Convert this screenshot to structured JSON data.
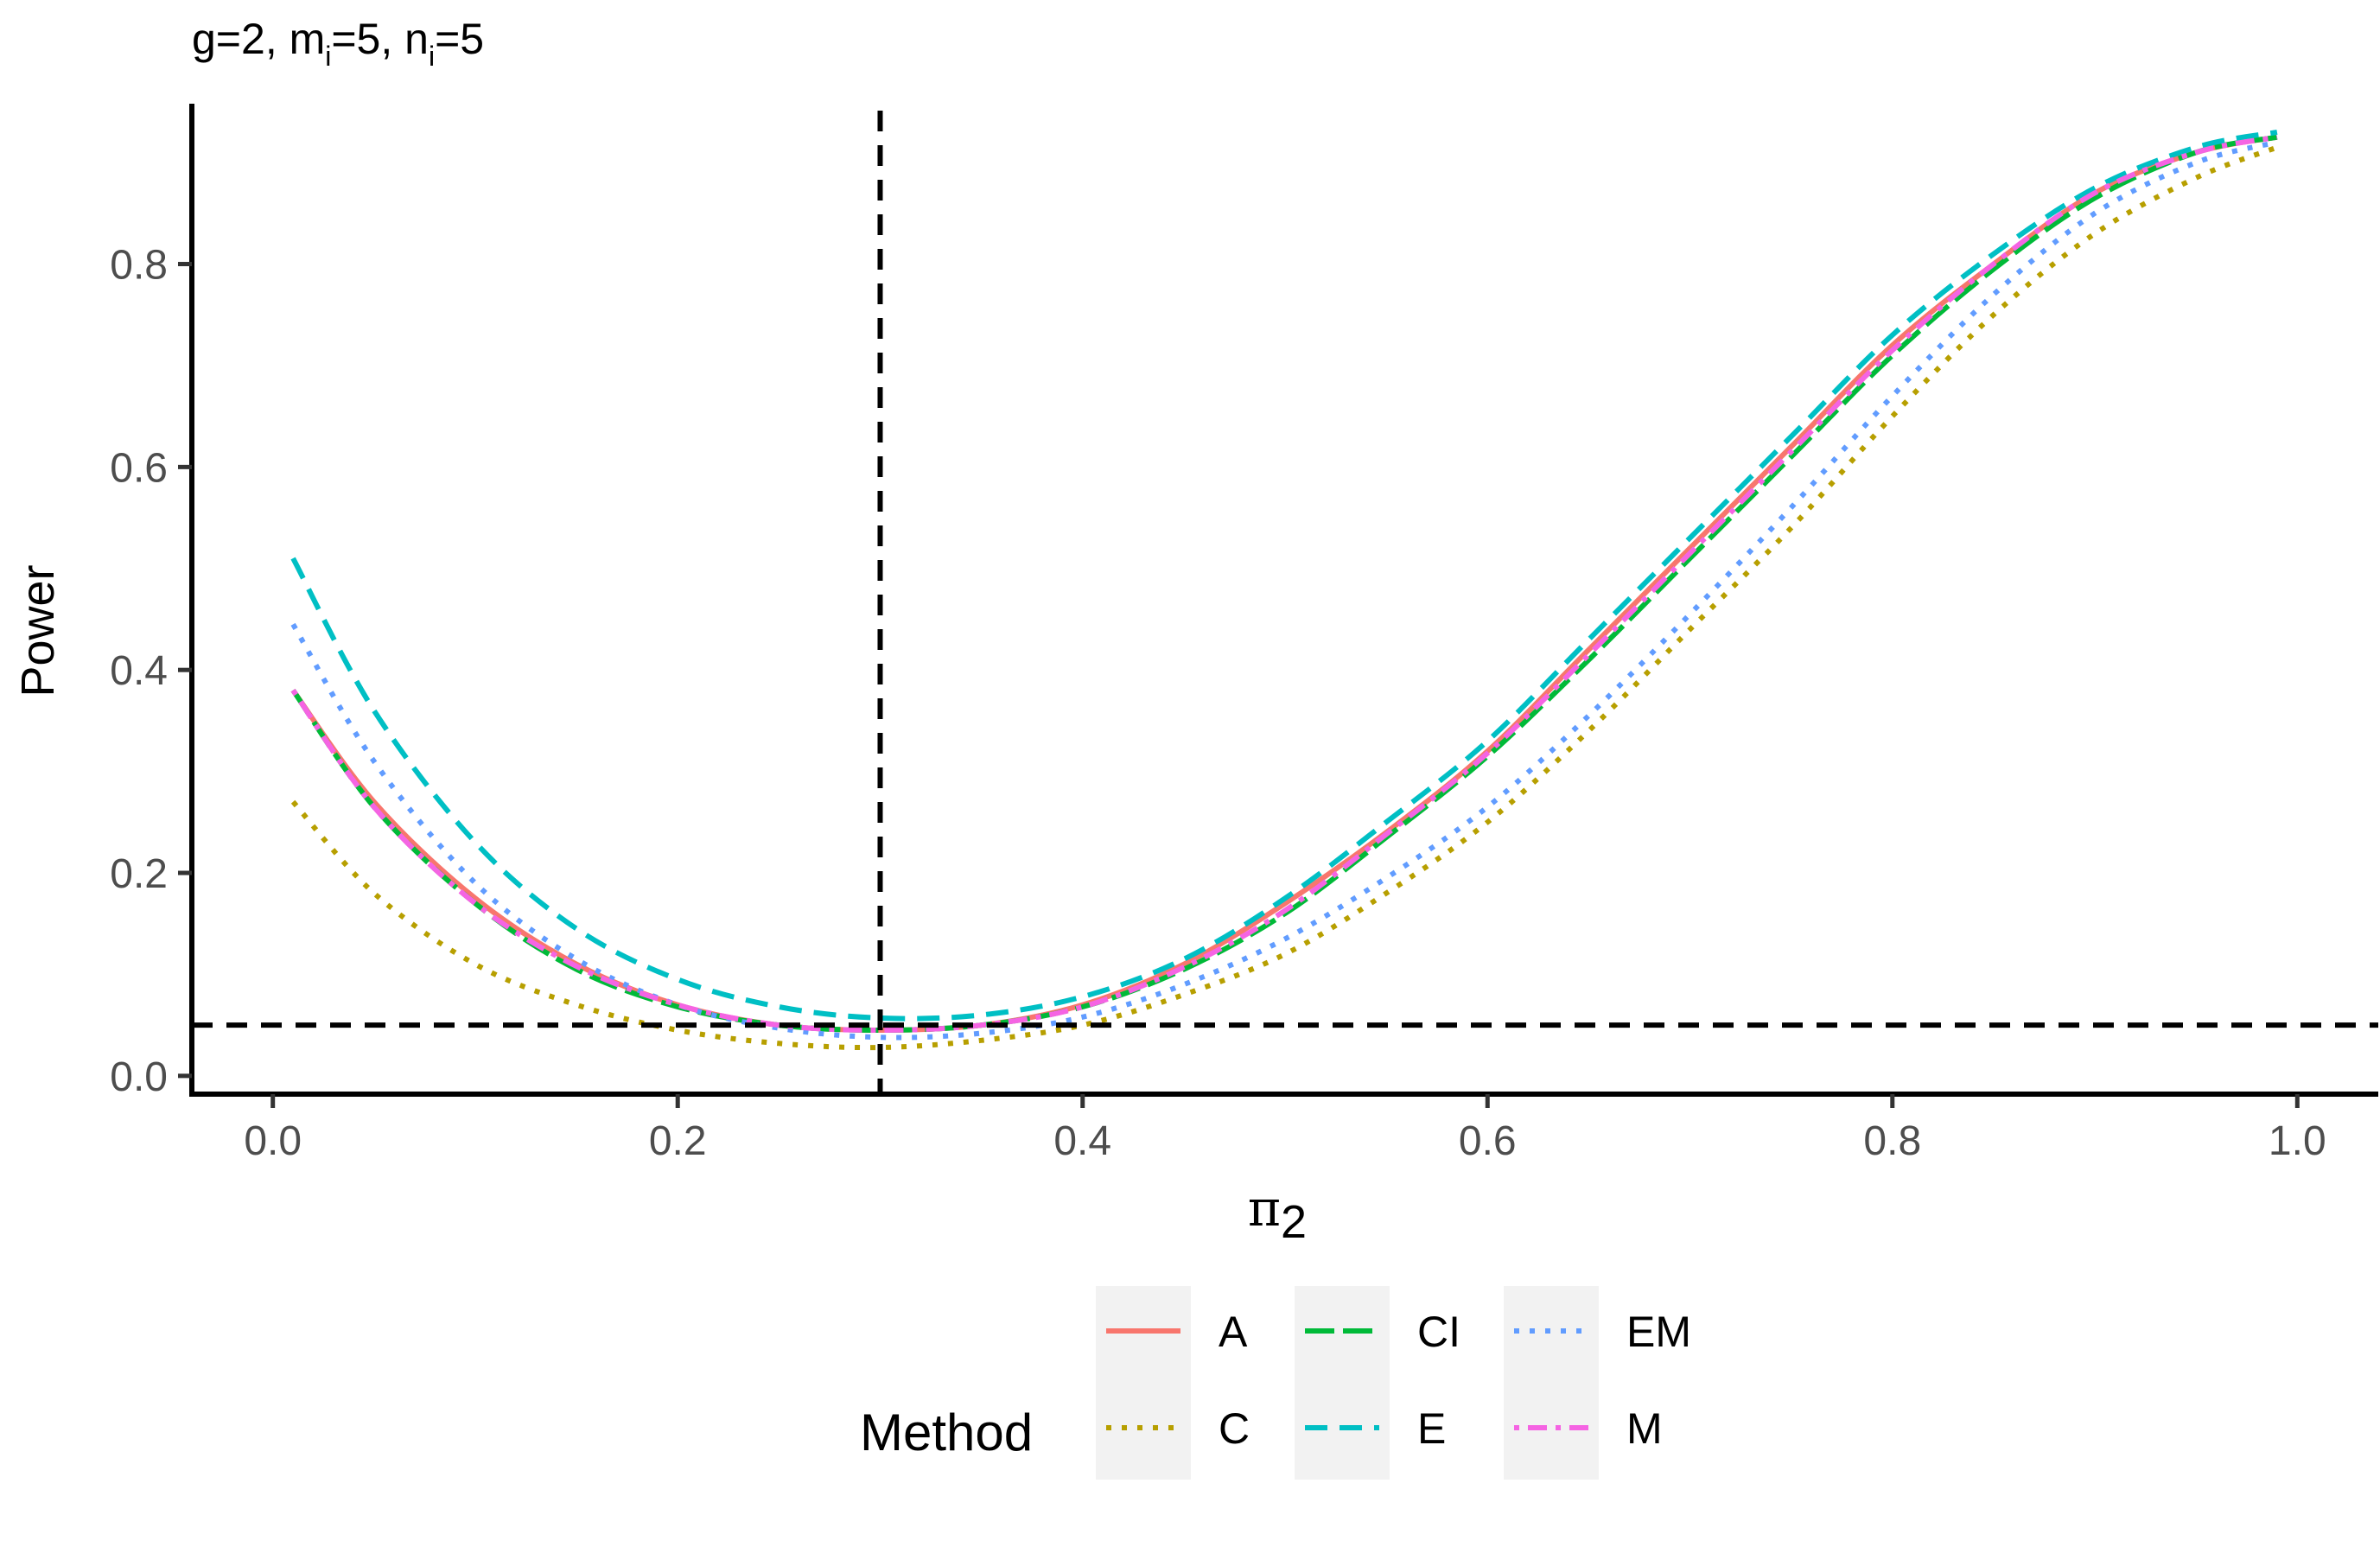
{
  "chart_data": {
    "type": "line",
    "title": {
      "prefix": "g=2, m",
      "sub1": "i",
      "mid": "=5, n",
      "sub2": "i",
      "suffix": "=5"
    },
    "xlabel": {
      "symbol": "π",
      "subscript": "2"
    },
    "ylabel": "Power",
    "xlim": [
      -0.04,
      1.04
    ],
    "ylim": [
      -0.018,
      0.958
    ],
    "x_ticks": [
      0.0,
      0.2,
      0.4,
      0.6,
      0.8,
      1.0
    ],
    "x_tick_labels": [
      "0.0",
      "0.2",
      "0.4",
      "0.6",
      "0.8",
      "1.0"
    ],
    "y_ticks": [
      0.0,
      0.2,
      0.4,
      0.6,
      0.8
    ],
    "y_tick_labels": [
      "0.0",
      "0.2",
      "0.4",
      "0.6",
      "0.8"
    ],
    "grid": false,
    "reference_lines": [
      {
        "orientation": "vertical",
        "value": 0.3,
        "style": "dashed"
      },
      {
        "orientation": "horizontal",
        "value": 0.05,
        "style": "dashed"
      }
    ],
    "x": [
      0.01,
      0.05,
      0.1,
      0.15,
      0.2,
      0.25,
      0.3,
      0.35,
      0.4,
      0.45,
      0.5,
      0.55,
      0.6,
      0.65,
      0.7,
      0.75,
      0.8,
      0.85,
      0.9,
      0.95,
      0.99
    ],
    "series": [
      {
        "name": "A",
        "color": "#F8766D",
        "dash": "solid",
        "values": [
          0.38,
          0.27,
          0.175,
          0.11,
          0.07,
          0.05,
          0.045,
          0.05,
          0.07,
          0.11,
          0.17,
          0.24,
          0.32,
          0.42,
          0.52,
          0.62,
          0.72,
          0.8,
          0.87,
          0.91,
          0.925
        ]
      },
      {
        "name": "C",
        "color": "#B79F00",
        "dash": "dotted",
        "values": [
          0.27,
          0.18,
          0.11,
          0.07,
          0.045,
          0.032,
          0.028,
          0.035,
          0.05,
          0.08,
          0.12,
          0.18,
          0.25,
          0.34,
          0.44,
          0.54,
          0.65,
          0.75,
          0.83,
          0.885,
          0.915
        ]
      },
      {
        "name": "CI",
        "color": "#00BA38",
        "dash": "longdash",
        "values": [
          0.38,
          0.265,
          0.17,
          0.105,
          0.068,
          0.05,
          0.045,
          0.05,
          0.068,
          0.105,
          0.16,
          0.235,
          0.315,
          0.41,
          0.51,
          0.61,
          0.71,
          0.795,
          0.865,
          0.91,
          0.925
        ]
      },
      {
        "name": "E",
        "color": "#00BFC4",
        "dash": "dashed",
        "values": [
          0.51,
          0.36,
          0.23,
          0.145,
          0.095,
          0.068,
          0.057,
          0.06,
          0.078,
          0.115,
          0.175,
          0.25,
          0.33,
          0.43,
          0.53,
          0.63,
          0.73,
          0.81,
          0.875,
          0.915,
          0.93
        ]
      },
      {
        "name": "EM",
        "color": "#619CFF",
        "dash": "dotted",
        "values": [
          0.445,
          0.31,
          0.19,
          0.115,
          0.07,
          0.047,
          0.038,
          0.042,
          0.058,
          0.09,
          0.135,
          0.195,
          0.265,
          0.355,
          0.455,
          0.56,
          0.67,
          0.77,
          0.85,
          0.9,
          0.92
        ]
      },
      {
        "name": "M",
        "color": "#F564E3",
        "dash": "dotdash",
        "values": [
          0.38,
          0.265,
          0.17,
          0.108,
          0.07,
          0.05,
          0.045,
          0.05,
          0.068,
          0.107,
          0.163,
          0.238,
          0.318,
          0.415,
          0.515,
          0.615,
          0.715,
          0.8,
          0.87,
          0.91,
          0.925
        ]
      }
    ],
    "legend": {
      "title": "Method",
      "position": "bottom",
      "columns": [
        [
          "A",
          "C"
        ],
        [
          "CI",
          "E"
        ],
        [
          "EM",
          "M"
        ]
      ]
    }
  }
}
